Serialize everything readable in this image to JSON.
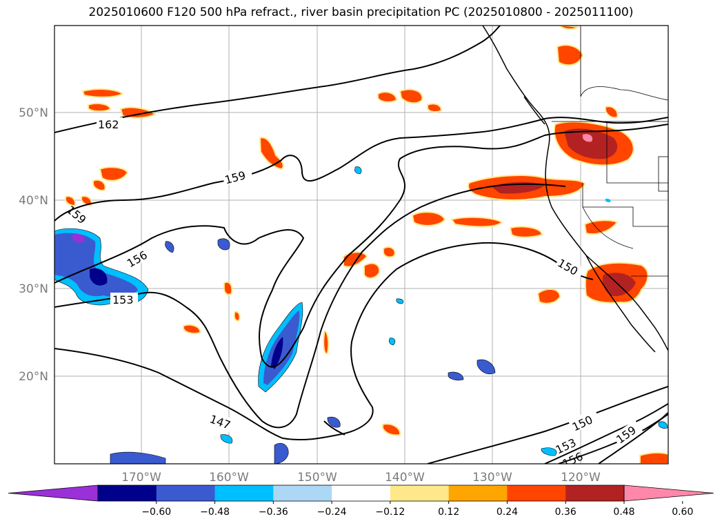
{
  "title": "2025010600 F120 500 hPa refract., river basin precipitation PC (2025010800 - 2025011100)",
  "lat_labels": [
    "50°N",
    "40°N",
    "30°N",
    "20°N"
  ],
  "lon_labels": [
    "170°W",
    "160°W",
    "150°W",
    "140°W",
    "130°W",
    "120°W"
  ],
  "contour_labels": [
    "162",
    "159",
    "159",
    "156",
    "153",
    "150",
    "147",
    "150",
    "153",
    "156",
    "159"
  ],
  "colorbar": {
    "colors": [
      "#9b30d8",
      "#00008b",
      "#3a5bd0",
      "#00bfff",
      "#add8f5",
      "#ffffff",
      "#ffe88a",
      "#ffa500",
      "#ff4500",
      "#b22222",
      "#ff88aa"
    ],
    "ticks": [
      "−0.60",
      "−0.48",
      "−0.36",
      "−0.24",
      "−0.12",
      "0.12",
      "0.24",
      "0.36",
      "0.48",
      "0.60"
    ]
  },
  "map": {
    "lat_range": [
      10,
      60
    ],
    "lon_range": [
      -180,
      -110
    ],
    "grid": true
  }
}
